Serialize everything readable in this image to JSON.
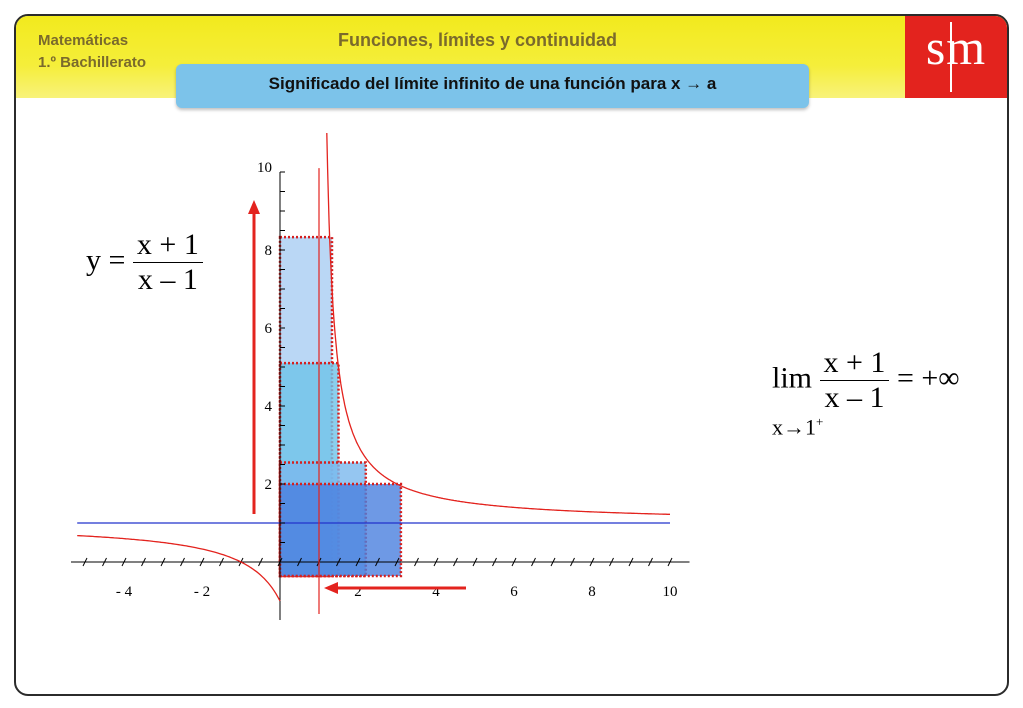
{
  "header": {
    "subject_line1": "Matemáticas",
    "subject_line2": "1.º Bachillerato",
    "unit_title": "Funciones, límites y continuidad",
    "logo_text": "sm",
    "subtitle": "Significado del límite infinito de una función para x → a"
  },
  "function_label": {
    "lhs": "y =",
    "numerator": "x + 1",
    "denominator": "x – 1"
  },
  "limit_label": {
    "lim": "lim",
    "subscript": "x→1",
    "superscript": "+",
    "numerator": "x + 1",
    "denominator": "x – 1",
    "result": "= +∞"
  },
  "chart_data": {
    "type": "line",
    "function": "y = (x+1)/(x-1)",
    "vertical_asymptote": 1,
    "horizontal_asymptote": 1,
    "xlim": [
      -5,
      10
    ],
    "ylim": [
      -1,
      10
    ],
    "x_tick_labels": [
      "- 4",
      "- 2",
      "2",
      "4",
      "6",
      "8",
      "10"
    ],
    "y_tick_labels": [
      "2",
      "4",
      "6",
      "8",
      "10"
    ],
    "colors": {
      "curve": "#e3231e",
      "asymptote_h": "#2233cc",
      "asymptote_v": "#e3231e",
      "arrow": "#e3231e"
    },
    "boxes": [
      {
        "x0": 0,
        "x1": 1.333,
        "y1": 8.33,
        "color": "#a9cdf2"
      },
      {
        "x0": 0,
        "x1": 1.5,
        "y1": 5.1,
        "color": "#6ec3e8"
      },
      {
        "x0": 0,
        "x1": 2.2,
        "y1": 2.55,
        "color": "#7bb8ee"
      },
      {
        "x0": 0,
        "x1": 3.1,
        "y1": 2.0,
        "color": "#4a7fde"
      }
    ]
  }
}
